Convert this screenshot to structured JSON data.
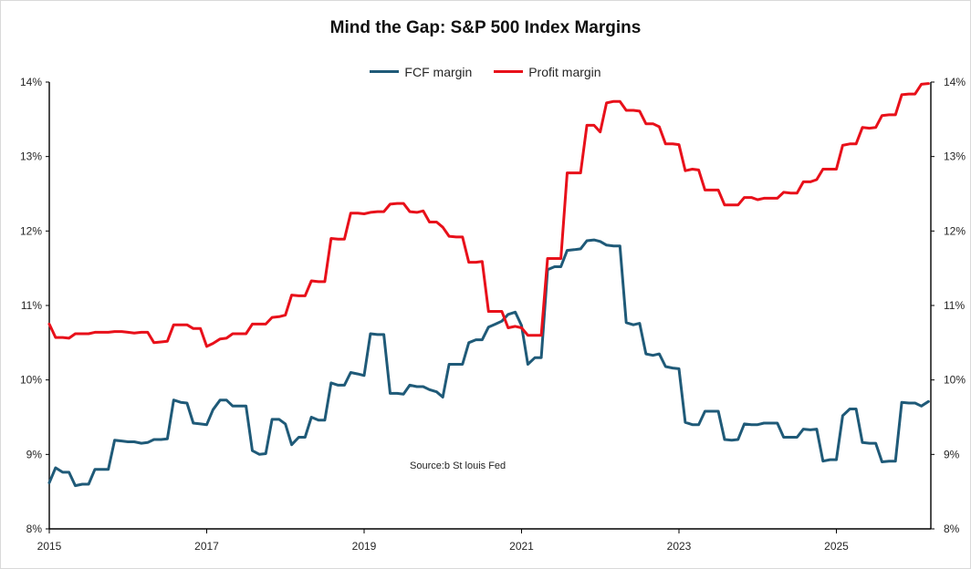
{
  "chart_data": {
    "type": "line",
    "title": "Mind the Gap: S&P 500 Index Margins",
    "source": "Source:b St louis Fed",
    "x_ticks": [
      "2015",
      "2017",
      "2019",
      "2021",
      "2023",
      "2025"
    ],
    "y_ticks": [
      "8%",
      "9%",
      "10%",
      "11%",
      "12%",
      "13%",
      "14%"
    ],
    "xlim": [
      2015,
      2026.2
    ],
    "ylim": [
      8,
      14
    ],
    "legend_position": "top-center",
    "grid": false,
    "series": [
      {
        "name": "FCF margin",
        "color": "#1f5a78",
        "x": [
          2015.0,
          2015.08,
          2015.17,
          2015.25,
          2015.33,
          2015.42,
          2015.5,
          2015.58,
          2015.67,
          2015.75,
          2015.83,
          2015.92,
          2016.0,
          2016.08,
          2016.17,
          2016.25,
          2016.33,
          2016.42,
          2016.5,
          2016.58,
          2016.67,
          2016.75,
          2016.83,
          2016.92,
          2017.0,
          2017.08,
          2017.17,
          2017.25,
          2017.33,
          2017.42,
          2017.5,
          2017.58,
          2017.67,
          2017.75,
          2017.83,
          2017.92,
          2018.0,
          2018.08,
          2018.17,
          2018.25,
          2018.33,
          2018.42,
          2018.5,
          2018.58,
          2018.67,
          2018.75,
          2018.83,
          2018.92,
          2019.0,
          2019.08,
          2019.17,
          2019.25,
          2019.33,
          2019.42,
          2019.5,
          2019.58,
          2019.67,
          2019.75,
          2019.83,
          2019.92,
          2020.0,
          2020.08,
          2020.17,
          2020.25,
          2020.33,
          2020.42,
          2020.5,
          2020.58,
          2020.67,
          2020.75,
          2020.83,
          2020.92,
          2021.0,
          2021.08,
          2021.17,
          2021.25,
          2021.33,
          2021.42,
          2021.5,
          2021.58,
          2021.67,
          2021.75,
          2021.83,
          2021.92,
          2022.0,
          2022.08,
          2022.17,
          2022.25,
          2022.33,
          2022.42,
          2022.5,
          2022.58,
          2022.67,
          2022.75,
          2022.83,
          2022.92,
          2023.0,
          2023.08,
          2023.17,
          2023.25,
          2023.33,
          2023.42,
          2023.5,
          2023.58,
          2023.67,
          2023.75,
          2023.83,
          2023.92,
          2024.0,
          2024.08,
          2024.17,
          2024.25,
          2024.33,
          2024.42,
          2024.5,
          2024.58,
          2024.67,
          2024.75,
          2024.83,
          2024.92,
          2025.0,
          2025.08,
          2025.17,
          2025.25,
          2025.33,
          2025.42,
          2025.5,
          2025.58,
          2025.67,
          2025.75,
          2025.83,
          2025.92,
          2026.0,
          2026.08,
          2026.17
        ],
        "y": [
          8.62,
          8.82,
          8.76,
          8.76,
          8.58,
          8.6,
          8.6,
          8.8,
          8.8,
          8.8,
          9.19,
          9.18,
          9.17,
          9.17,
          9.15,
          9.16,
          9.2,
          9.2,
          9.21,
          9.73,
          9.7,
          9.69,
          9.42,
          9.41,
          9.4,
          9.6,
          9.73,
          9.73,
          9.65,
          9.65,
          9.65,
          9.05,
          9.0,
          9.01,
          9.47,
          9.47,
          9.41,
          9.13,
          9.23,
          9.23,
          9.5,
          9.46,
          9.46,
          9.96,
          9.93,
          9.93,
          10.1,
          10.08,
          10.06,
          10.62,
          10.61,
          10.61,
          9.82,
          9.82,
          9.81,
          9.93,
          9.91,
          9.91,
          9.87,
          9.84,
          9.77,
          10.21,
          10.21,
          10.21,
          10.5,
          10.54,
          10.54,
          10.71,
          10.75,
          10.79,
          10.88,
          10.91,
          10.73,
          10.21,
          10.3,
          10.3,
          11.48,
          11.52,
          11.52,
          11.74,
          11.75,
          11.76,
          11.87,
          11.88,
          11.86,
          11.81,
          11.8,
          11.8,
          10.77,
          10.74,
          10.76,
          10.35,
          10.33,
          10.35,
          10.18,
          10.16,
          10.15,
          9.43,
          9.4,
          9.4,
          9.58,
          9.58,
          9.58,
          9.2,
          9.19,
          9.2,
          9.41,
          9.4,
          9.4,
          9.42,
          9.42,
          9.42,
          9.23,
          9.23,
          9.23,
          9.34,
          9.33,
          9.34,
          8.91,
          8.93,
          8.93,
          9.52,
          9.61,
          9.61,
          9.16,
          9.15,
          9.15,
          8.9,
          8.91,
          8.91,
          9.7,
          9.69,
          9.69,
          9.65,
          9.71
        ]
      },
      {
        "name": "Profit margin",
        "color": "#e8101a",
        "x": [
          2015.0,
          2015.08,
          2015.17,
          2015.25,
          2015.33,
          2015.42,
          2015.5,
          2015.58,
          2015.67,
          2015.75,
          2015.83,
          2015.92,
          2016.0,
          2016.08,
          2016.17,
          2016.25,
          2016.33,
          2016.42,
          2016.5,
          2016.58,
          2016.67,
          2016.75,
          2016.83,
          2016.92,
          2017.0,
          2017.08,
          2017.17,
          2017.25,
          2017.33,
          2017.42,
          2017.5,
          2017.58,
          2017.67,
          2017.75,
          2017.83,
          2017.92,
          2018.0,
          2018.08,
          2018.17,
          2018.25,
          2018.33,
          2018.42,
          2018.5,
          2018.58,
          2018.67,
          2018.75,
          2018.83,
          2018.92,
          2019.0,
          2019.08,
          2019.17,
          2019.25,
          2019.33,
          2019.42,
          2019.5,
          2019.58,
          2019.67,
          2019.75,
          2019.83,
          2019.92,
          2020.0,
          2020.08,
          2020.17,
          2020.25,
          2020.33,
          2020.42,
          2020.5,
          2020.58,
          2020.67,
          2020.75,
          2020.83,
          2020.92,
          2021.0,
          2021.08,
          2021.17,
          2021.25,
          2021.33,
          2021.42,
          2021.5,
          2021.58,
          2021.67,
          2021.75,
          2021.83,
          2021.92,
          2022.0,
          2022.08,
          2022.17,
          2022.25,
          2022.33,
          2022.42,
          2022.5,
          2022.58,
          2022.67,
          2022.75,
          2022.83,
          2022.92,
          2023.0,
          2023.08,
          2023.17,
          2023.25,
          2023.33,
          2023.42,
          2023.5,
          2023.58,
          2023.67,
          2023.75,
          2023.83,
          2023.92,
          2024.0,
          2024.08,
          2024.17,
          2024.25,
          2024.33,
          2024.42,
          2024.5,
          2024.58,
          2024.67,
          2024.75,
          2024.83,
          2024.92,
          2025.0,
          2025.08,
          2025.17,
          2025.25,
          2025.33,
          2025.42,
          2025.5,
          2025.58,
          2025.67,
          2025.75,
          2025.83,
          2025.92,
          2026.0,
          2026.08,
          2026.17
        ],
        "y": [
          10.75,
          10.57,
          10.57,
          10.56,
          10.62,
          10.62,
          10.62,
          10.64,
          10.64,
          10.64,
          10.65,
          10.65,
          10.64,
          10.63,
          10.64,
          10.64,
          10.5,
          10.51,
          10.52,
          10.74,
          10.74,
          10.74,
          10.69,
          10.69,
          10.45,
          10.49,
          10.55,
          10.56,
          10.62,
          10.62,
          10.62,
          10.75,
          10.75,
          10.75,
          10.84,
          10.85,
          10.87,
          11.14,
          11.13,
          11.13,
          11.33,
          11.32,
          11.32,
          11.9,
          11.89,
          11.89,
          12.24,
          12.24,
          12.23,
          12.25,
          12.26,
          12.26,
          12.36,
          12.37,
          12.37,
          12.26,
          12.25,
          12.27,
          12.12,
          12.12,
          12.05,
          11.93,
          11.92,
          11.92,
          11.58,
          11.58,
          11.59,
          10.92,
          10.92,
          10.92,
          10.7,
          10.72,
          10.7,
          10.6,
          10.6,
          10.6,
          11.63,
          11.63,
          11.63,
          12.78,
          12.78,
          12.78,
          13.42,
          13.42,
          13.33,
          13.72,
          13.74,
          13.74,
          13.62,
          13.62,
          13.61,
          13.44,
          13.44,
          13.4,
          13.17,
          13.17,
          13.16,
          12.81,
          12.83,
          12.82,
          12.55,
          12.55,
          12.55,
          12.35,
          12.35,
          12.35,
          12.45,
          12.45,
          12.42,
          12.44,
          12.44,
          12.44,
          12.52,
          12.51,
          12.51,
          12.66,
          12.66,
          12.69,
          12.83,
          12.83,
          12.83,
          13.15,
          13.17,
          13.17,
          13.39,
          13.38,
          13.39,
          13.55,
          13.56,
          13.56,
          13.83,
          13.84,
          13.84,
          13.97,
          13.98
        ]
      }
    ]
  }
}
